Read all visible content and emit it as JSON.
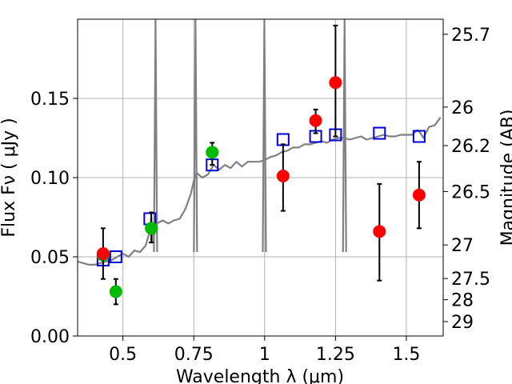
{
  "chart_data": {
    "type": "scatter",
    "xlabel": "Wavelength  λ (μm)",
    "ylabel": "Flux  Fν  ( μJy )",
    "ylabel_right": "Magnitude (AB)",
    "xlim": [
      0.34,
      1.63
    ],
    "ylim": [
      0.0,
      0.2
    ],
    "grid": true,
    "x_ticks": [
      {
        "value": 0.5,
        "label": "0.5"
      },
      {
        "value": 0.75,
        "label": "0.75"
      },
      {
        "value": 1.0,
        "label": "1"
      },
      {
        "value": 1.25,
        "label": "1.25"
      },
      {
        "value": 1.5,
        "label": "1.5"
      }
    ],
    "y_ticks": [
      {
        "value": 0.0,
        "label": "0.00"
      },
      {
        "value": 0.05,
        "label": "0.05"
      },
      {
        "value": 0.1,
        "label": "0.10"
      },
      {
        "value": 0.15,
        "label": "0.15"
      }
    ],
    "right_ticks": [
      {
        "label": "25.7",
        "flux": 0.1905
      },
      {
        "label": "26",
        "flux": 0.1445
      },
      {
        "label": "26.2",
        "flux": 0.1202
      },
      {
        "label": "26.5",
        "flux": 0.0912
      },
      {
        "label": "27",
        "flux": 0.0575
      },
      {
        "label": "27.5",
        "flux": 0.0363
      },
      {
        "label": "28",
        "flux": 0.0229
      },
      {
        "label": "29",
        "flux": 0.0091
      }
    ],
    "series": [
      {
        "color": "#808080",
        "kind": "line",
        "x": [
          0.34,
          0.36,
          0.38,
          0.4,
          0.42,
          0.44,
          0.46,
          0.48,
          0.5,
          0.52,
          0.54,
          0.56,
          0.58,
          0.595,
          0.6,
          0.605,
          0.62,
          0.64,
          0.66,
          0.68,
          0.7,
          0.72,
          0.74,
          0.75,
          0.76,
          0.78,
          0.8,
          0.82,
          0.84,
          0.86,
          0.88,
          0.9,
          0.92,
          0.94,
          0.96,
          0.98,
          1.0,
          1.02,
          1.04,
          1.06,
          1.08,
          1.1,
          1.12,
          1.14,
          1.16,
          1.18,
          1.2,
          1.22,
          1.24,
          1.26,
          1.28,
          1.3,
          1.32,
          1.34,
          1.36,
          1.38,
          1.4,
          1.42,
          1.44,
          1.46,
          1.48,
          1.5,
          1.52,
          1.54,
          1.55,
          1.56,
          1.58,
          1.6,
          1.62
        ],
        "y": [
          0.047,
          0.046,
          0.045,
          0.045,
          0.046,
          0.047,
          0.048,
          0.05,
          0.052,
          0.05,
          0.054,
          0.053,
          0.057,
          0.066,
          0.075,
          0.06,
          0.071,
          0.073,
          0.071,
          0.073,
          0.074,
          0.08,
          0.09,
          0.098,
          0.103,
          0.1,
          0.102,
          0.108,
          0.105,
          0.108,
          0.106,
          0.11,
          0.107,
          0.11,
          0.11,
          0.11,
          0.111,
          0.113,
          0.114,
          0.116,
          0.117,
          0.119,
          0.119,
          0.121,
          0.121,
          0.122,
          0.123,
          0.122,
          0.124,
          0.125,
          0.125,
          0.124,
          0.125,
          0.126,
          0.124,
          0.125,
          0.126,
          0.127,
          0.126,
          0.126,
          0.127,
          0.127,
          0.127,
          0.13,
          0.128,
          0.125,
          0.132,
          0.133,
          0.138
        ]
      },
      {
        "color": "#0000dd",
        "kind": "open-square",
        "x": [
          0.43,
          0.475,
          0.595,
          0.815,
          1.065,
          1.18,
          1.25,
          1.405,
          1.545
        ],
        "y": [
          0.048,
          0.05,
          0.074,
          0.108,
          0.124,
          0.126,
          0.127,
          0.128,
          0.126
        ]
      },
      {
        "color": "#00bb00",
        "kind": "circle",
        "x": [
          0.43,
          0.475,
          0.6,
          0.815
        ],
        "y": [
          0.051,
          0.028,
          0.068,
          0.116
        ],
        "yerr_low": [
          0.051,
          0.02,
          0.059,
          0.108
        ],
        "yerr_high": [
          0.051,
          0.036,
          0.078,
          0.122
        ]
      },
      {
        "color": "#ff0000",
        "kind": "circle",
        "x": [
          0.43,
          1.065,
          1.18,
          1.25,
          1.405,
          1.545
        ],
        "y": [
          0.052,
          0.101,
          0.136,
          0.16,
          0.066,
          0.089
        ],
        "yerr_low": [
          0.036,
          0.079,
          0.128,
          0.126,
          0.035,
          0.068
        ],
        "yerr_high": [
          0.068,
          0.121,
          0.143,
          0.196,
          0.096,
          0.11
        ]
      }
    ],
    "spikes": [
      {
        "x": 0.615,
        "color": "#808080"
      },
      {
        "x": 0.756,
        "color": "#808080"
      },
      {
        "x": 0.999,
        "color": "#808080"
      },
      {
        "x": 1.282,
        "color": "#808080"
      }
    ]
  }
}
